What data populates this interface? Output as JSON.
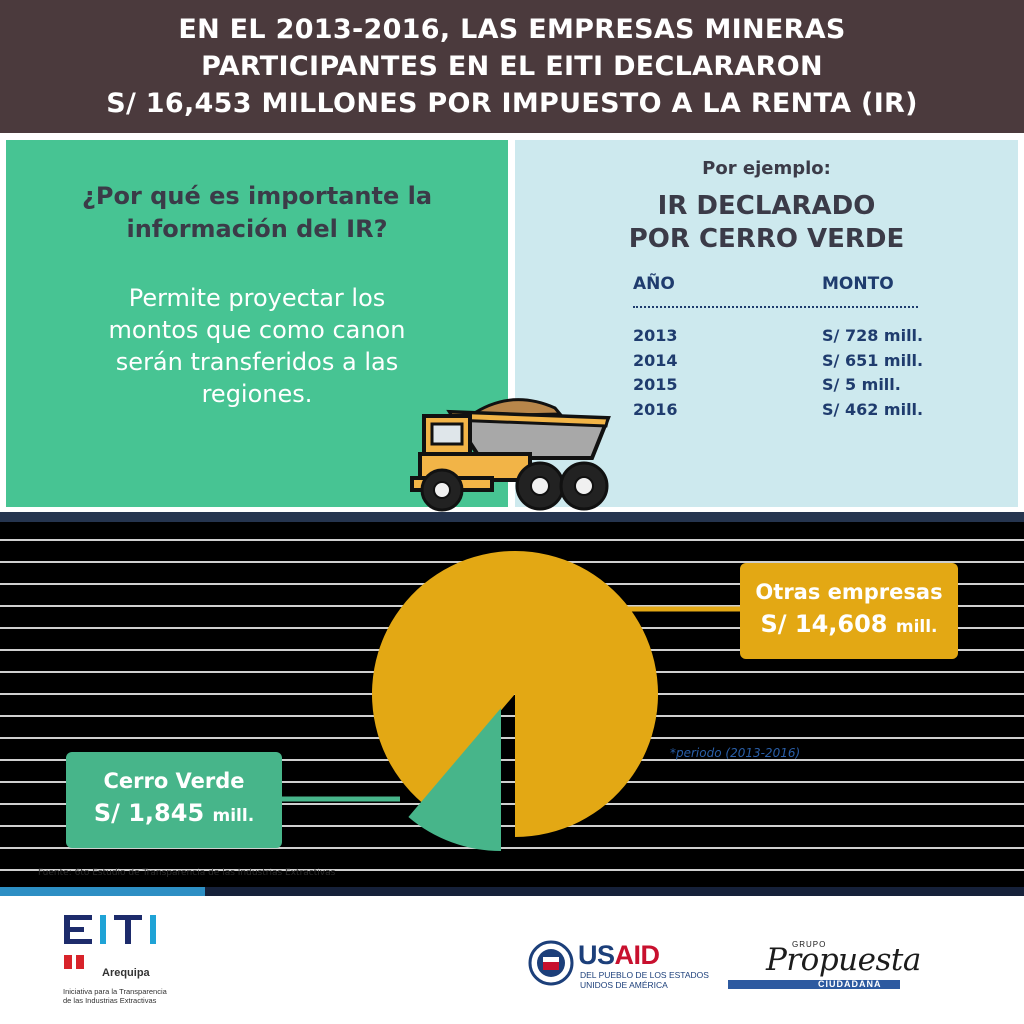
{
  "header": {
    "line1": "EN EL 2013-2016, LAS EMPRESAS MINERAS",
    "line2": "PARTICIPANTES EN EL EITI DECLARARON",
    "line3": "S/ 16,453 MILLONES POR IMPUESTO A LA RENTA (IR)"
  },
  "info": {
    "question_line1": "¿Por qué es importante la",
    "question_line2": "información del IR?",
    "answer_line1": "Permite proyectar los",
    "answer_line2": "montos que como canon",
    "answer_line3": "serán transferidos a las",
    "answer_line4": "regiones."
  },
  "example": {
    "intro": "Por ejemplo:",
    "title_line1": "IR DECLARADO",
    "title_line2": "POR CERRO VERDE",
    "col_year": "AÑO",
    "col_amount": "MONTO",
    "rows": [
      {
        "year": "2013",
        "amount": "S/ 728 mill."
      },
      {
        "year": "2014",
        "amount": "S/ 651 mill."
      },
      {
        "year": "2015",
        "amount": "S/ 5 mill."
      },
      {
        "year": "2016",
        "amount": "S/ 462 mill."
      }
    ]
  },
  "chart_data": {
    "type": "pie",
    "slices": [
      {
        "name": "Otras empresas",
        "amount_label": "S/ 14,608",
        "unit": "mill.",
        "value": 14608,
        "color": "#e3a814"
      },
      {
        "name": "Cerro Verde",
        "amount_label": "S/ 1,845",
        "unit": "mill.",
        "value": 1845,
        "color": "#47b58a"
      }
    ],
    "note": "*periodo (2013-2016)"
  },
  "source": "Fuente: 6to Estudio de Transparencia de las Industrias Extractivas",
  "logos": {
    "eiti_caption_line1": "Iniciativa para la Transparencia",
    "eiti_caption_line2": "de las Industrias Extractivas",
    "eiti_region": "Arequipa",
    "usaid_sub_line1": "DEL PUEBLO DE LOS ESTADOS",
    "usaid_sub_line2": "UNIDOS DE AMÉRICA",
    "propuesta_small": "GRUPO",
    "propuesta_main": "Propuesta",
    "propuesta_sub": "CIUDADANA"
  },
  "colors": {
    "header_bg": "#4b3a3d",
    "green": "#47c493",
    "light_blue": "#cde9ee",
    "gold": "#e3a814",
    "dark_green": "#47b58a",
    "navy": "#1f3c6e"
  }
}
